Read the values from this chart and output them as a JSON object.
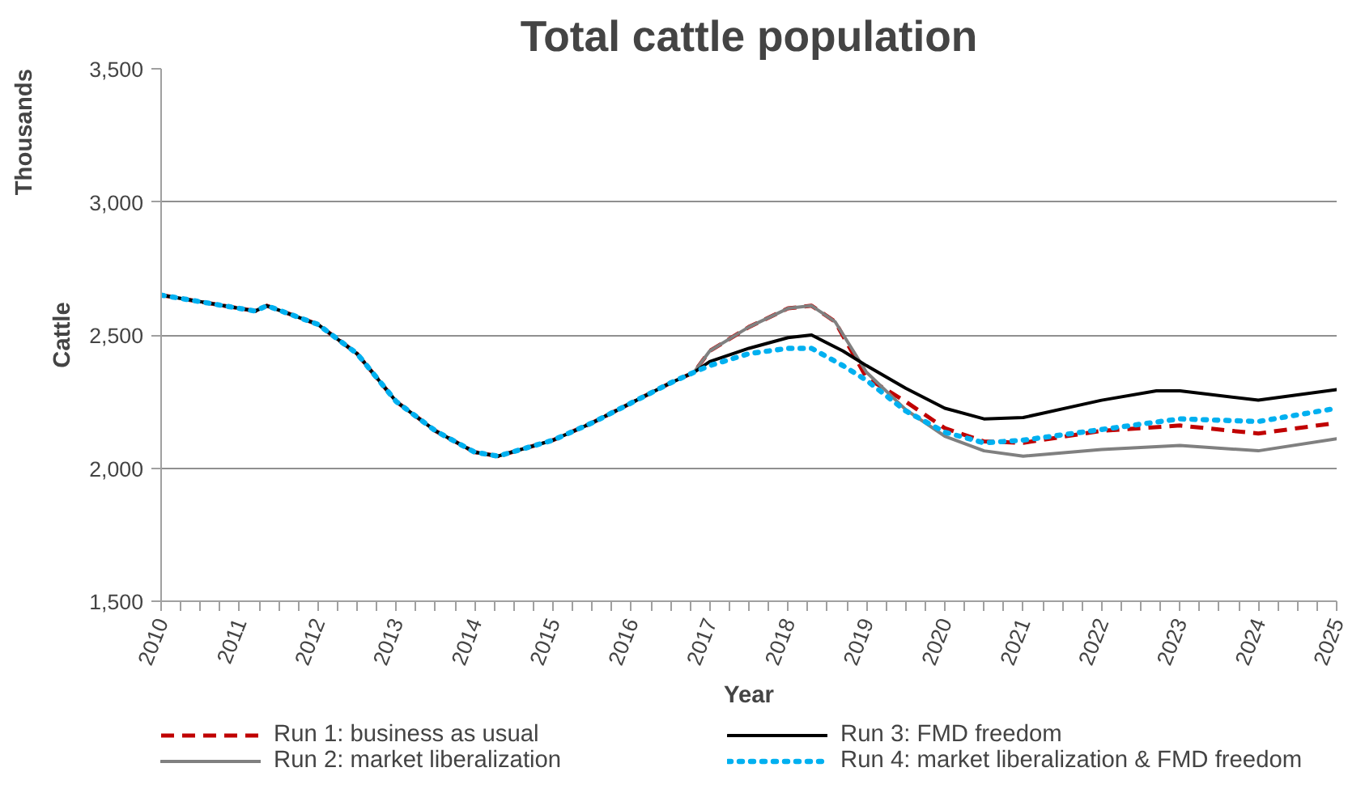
{
  "chart_data": {
    "type": "line",
    "title": "Total cattle population",
    "xlabel": "Year",
    "ylabel": "Cattle",
    "y2label": "Thousands",
    "xlim": [
      2010,
      2025
    ],
    "xticks": [
      2010,
      2011,
      2012,
      2013,
      2014,
      2015,
      2016,
      2017,
      2018,
      2019,
      2020,
      2021,
      2022,
      2023,
      2024,
      2025
    ],
    "ylim": [
      1500,
      3500
    ],
    "yticks": [
      {
        "value": 1500,
        "label": "1,500"
      },
      {
        "value": 2000,
        "label": "2,000"
      },
      {
        "value": 2500,
        "label": "2,500"
      },
      {
        "value": 3000,
        "label": "3,000"
      },
      {
        "value": 3500,
        "label": "3,500"
      }
    ],
    "grid": "y",
    "legend": "bottom",
    "marker": "none",
    "series": [
      {
        "name": "Run 1: business as usual",
        "color": "#c00000",
        "line_style": "dashed",
        "x": [
          2010,
          2011.2,
          2011.35,
          2012,
          2012.5,
          2013,
          2013.5,
          2014,
          2014.3,
          2015,
          2015.5,
          2016,
          2016.5,
          2016.8,
          2017,
          2017.5,
          2018,
          2018.3,
          2018.6,
          2019,
          2019.5,
          2020,
          2020.5,
          2021,
          2022,
          2023,
          2024,
          2025
        ],
        "values": [
          2650,
          2590,
          2610,
          2540,
          2430,
          2250,
          2140,
          2060,
          2045,
          2105,
          2170,
          2245,
          2320,
          2360,
          2440,
          2530,
          2600,
          2610,
          2550,
          2340,
          2250,
          2150,
          2100,
          2095,
          2140,
          2160,
          2130,
          2170
        ]
      },
      {
        "name": "Run 2: market liberalization",
        "color": "#808080",
        "line_style": "solid",
        "x": [
          2010,
          2011.2,
          2011.35,
          2012,
          2012.5,
          2013,
          2013.5,
          2014,
          2014.3,
          2015,
          2015.5,
          2016,
          2016.5,
          2016.8,
          2017,
          2017.5,
          2018,
          2018.3,
          2018.6,
          2019,
          2019.5,
          2020,
          2020.5,
          2021,
          2022,
          2023,
          2024,
          2025
        ],
        "values": [
          2650,
          2590,
          2610,
          2540,
          2430,
          2250,
          2140,
          2060,
          2045,
          2105,
          2170,
          2245,
          2320,
          2360,
          2440,
          2530,
          2600,
          2610,
          2550,
          2360,
          2220,
          2120,
          2065,
          2045,
          2070,
          2085,
          2065,
          2110
        ]
      },
      {
        "name": "Run 3: FMD freedom",
        "color": "#000000",
        "line_style": "solid",
        "x": [
          2010,
          2011.2,
          2011.35,
          2012,
          2012.5,
          2013,
          2013.5,
          2014,
          2014.3,
          2015,
          2015.5,
          2016,
          2016.5,
          2016.8,
          2017,
          2017.5,
          2018,
          2018.3,
          2018.7,
          2019,
          2019.5,
          2020,
          2020.5,
          2021,
          2022,
          2022.7,
          2023,
          2024,
          2025
        ],
        "values": [
          2650,
          2590,
          2610,
          2540,
          2430,
          2250,
          2140,
          2060,
          2045,
          2105,
          2170,
          2245,
          2320,
          2360,
          2400,
          2450,
          2490,
          2500,
          2440,
          2385,
          2300,
          2225,
          2185,
          2190,
          2255,
          2290,
          2290,
          2255,
          2295
        ]
      },
      {
        "name": "Run 4: market liberalization & FMD freedom",
        "color": "#00b0f0",
        "line_style": "dotted",
        "x": [
          2010,
          2011.2,
          2011.35,
          2012,
          2012.5,
          2013,
          2013.5,
          2014,
          2014.3,
          2015,
          2015.5,
          2016,
          2016.5,
          2016.8,
          2017,
          2017.5,
          2018,
          2018.3,
          2018.7,
          2019,
          2019.5,
          2020,
          2020.5,
          2021,
          2022,
          2023,
          2024,
          2025
        ],
        "values": [
          2650,
          2590,
          2610,
          2540,
          2430,
          2250,
          2140,
          2060,
          2045,
          2105,
          2170,
          2245,
          2320,
          2360,
          2385,
          2430,
          2450,
          2450,
          2385,
          2330,
          2215,
          2135,
          2095,
          2105,
          2145,
          2185,
          2175,
          2225
        ]
      }
    ]
  }
}
